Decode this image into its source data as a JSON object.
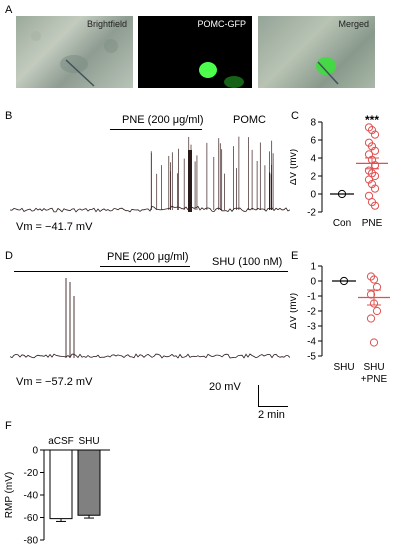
{
  "panels": {
    "A": "A",
    "B": "B",
    "C": "C",
    "D": "D",
    "E": "E",
    "F": "F"
  },
  "images": {
    "brightfield": "Brightfield",
    "gfp": "POMC-GFP",
    "merged": "Merged"
  },
  "trace_b": {
    "drug": "PNE (200 μg/ml)",
    "cell": "POMC",
    "vm": "Vm = −41.7 mV"
  },
  "trace_d": {
    "drug": "PNE (200 μg/ml)",
    "blocker": "SHU (100 nM)",
    "vm": "Vm = −57.2 mV"
  },
  "scalebar": {
    "voltage": "20 mV",
    "time": "2 min"
  },
  "colors": {
    "pne": "#e05050",
    "bar_shu": "#808080",
    "bar_acsf": "#ffffff",
    "gfp": "#2fd23a"
  },
  "chart_data": [
    {
      "id": "C",
      "type": "scatter",
      "ylabel": "ΔV (mv)",
      "ylim": [
        -2,
        8
      ],
      "yticks": [
        -2,
        0,
        2,
        4,
        6,
        8
      ],
      "categories": [
        "Con",
        "PNE"
      ],
      "significance": "***",
      "series": [
        {
          "category": "Con",
          "values": [
            0
          ],
          "mean": 0,
          "sem": 0
        },
        {
          "category": "PNE",
          "values": [
            7.4,
            7.1,
            6.6,
            5.7,
            5.3,
            4.8,
            4.4,
            3.8,
            3.2,
            2.6,
            2.3,
            2.0,
            1.6,
            1.1,
            0.6,
            -0.2,
            -0.9,
            -1.3
          ],
          "mean": 3.4,
          "sem": 0.6
        }
      ]
    },
    {
      "id": "E",
      "type": "scatter",
      "ylabel": "ΔV (mv)",
      "ylim": [
        -5,
        1
      ],
      "yticks": [
        -5,
        -4,
        -3,
        -2,
        -1,
        0,
        1
      ],
      "categories": [
        "SHU",
        "SHU +PNE"
      ],
      "series": [
        {
          "category": "SHU",
          "values": [
            0
          ],
          "mean": 0,
          "sem": 0
        },
        {
          "category": "SHU +PNE",
          "values": [
            0.3,
            0.1,
            -0.4,
            -0.9,
            -1.5,
            -2.0,
            -2.5,
            -4.1
          ],
          "mean": -1.1,
          "sem": 0.5
        }
      ]
    },
    {
      "id": "F",
      "type": "bar",
      "ylabel": "RMP (mV)",
      "ylim": [
        -80,
        0
      ],
      "yticks": [
        0,
        -20,
        -40,
        -60,
        -80
      ],
      "categories": [
        "aCSF",
        "SHU"
      ],
      "values": [
        -61,
        -58
      ],
      "errors": [
        2.5,
        2.5
      ]
    }
  ]
}
